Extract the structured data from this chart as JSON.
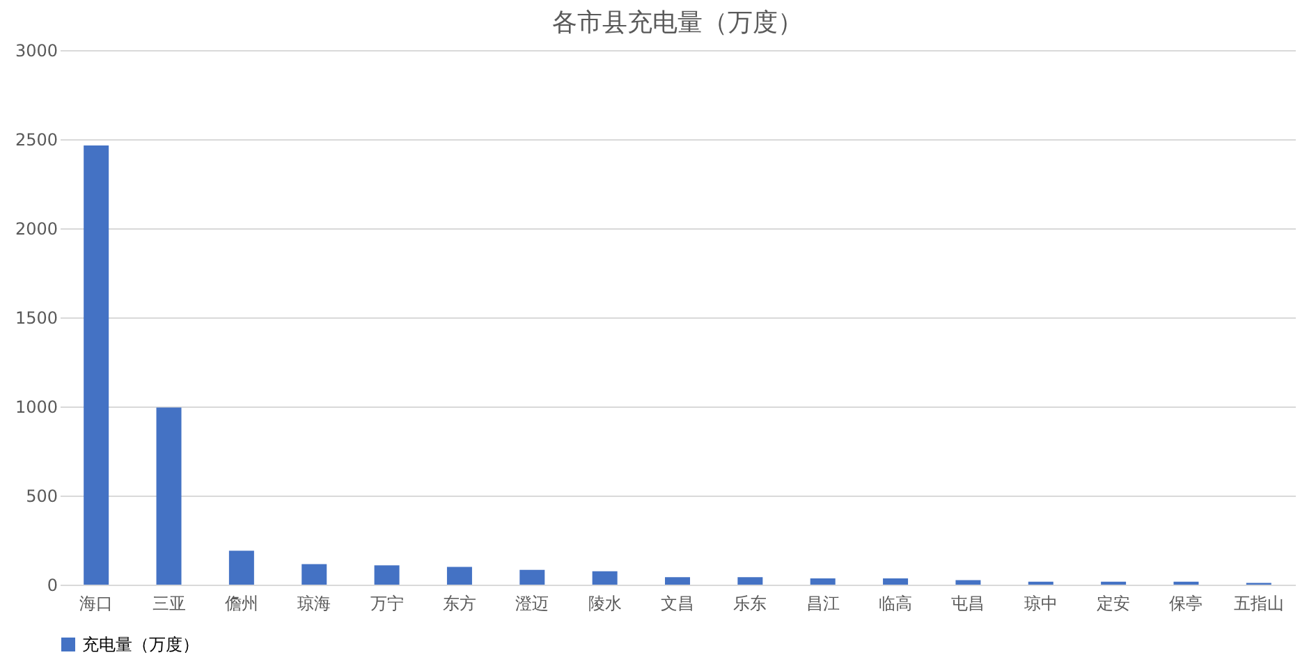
{
  "chart_data": {
    "type": "bar",
    "title": "各市县充电量（万度）",
    "categories": [
      "海口",
      "三亚",
      "儋州",
      "琼海",
      "万宁",
      "东方",
      "澄迈",
      "陵水",
      "文昌",
      "乐东",
      "昌江",
      "临高",
      "屯昌",
      "琼中",
      "定安",
      "保亭",
      "五指山"
    ],
    "series": [
      {
        "name": "充电量（万度）",
        "color": "#4472c4",
        "values": [
          2465,
          994,
          190,
          115,
          108,
          100,
          83,
          75,
          42,
          42,
          35,
          35,
          25,
          17,
          17,
          17,
          10
        ]
      }
    ],
    "ylim": [
      0,
      3000
    ],
    "yticks": [
      0,
      500,
      1000,
      1500,
      2000,
      2500,
      3000
    ],
    "grid": "y",
    "legend": "bottom"
  }
}
